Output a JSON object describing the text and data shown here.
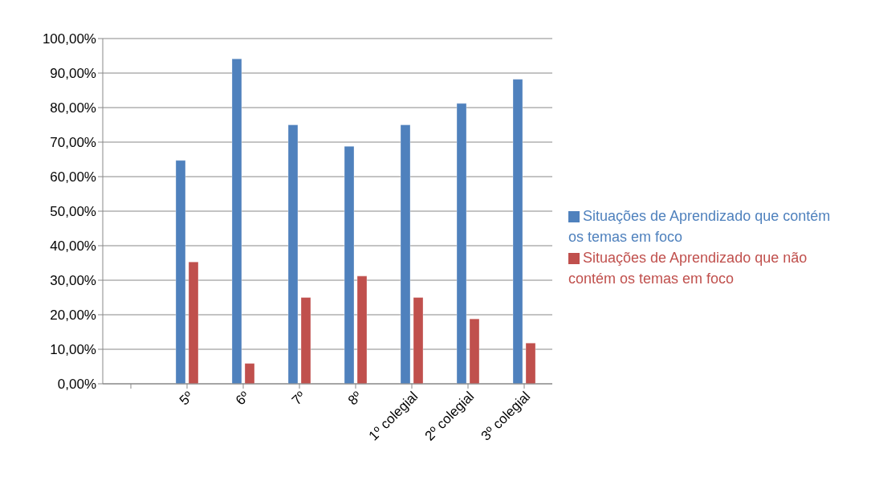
{
  "chart_data": {
    "type": "bar",
    "categories": [
      null,
      "5º",
      "6º",
      "7º",
      "8º",
      "1º colegial",
      "2º colegial",
      "3º colegial"
    ],
    "series": [
      {
        "name": "Situações de Aprendizado que contém os temas em foco",
        "color": "#4f81bd",
        "values": [
          null,
          64.7,
          94.1,
          75,
          68.8,
          75,
          81.2,
          88.2
        ]
      },
      {
        "name": "Situações de Aprendizado que não contém os temas em foco",
        "color": "#c0504d",
        "values": [
          null,
          35.3,
          5.9,
          25,
          31.2,
          25,
          18.8,
          11.8
        ]
      }
    ],
    "ylim": [
      0,
      100
    ],
    "yticks": [
      {
        "value": 0,
        "label": "0,00%"
      },
      {
        "value": 10,
        "label": "10,00%"
      },
      {
        "value": 20,
        "label": "20,00%"
      },
      {
        "value": 30,
        "label": "30,00%"
      },
      {
        "value": 40,
        "label": "40,00%"
      },
      {
        "value": 50,
        "label": "50,00%"
      },
      {
        "value": 60,
        "label": "60,00%"
      },
      {
        "value": 70,
        "label": "70,00%"
      },
      {
        "value": 80,
        "label": "80,00%"
      },
      {
        "value": 90,
        "label": "90,00%"
      },
      {
        "value": 100,
        "label": "100,00%"
      }
    ],
    "grid": "y",
    "legend": "right"
  }
}
